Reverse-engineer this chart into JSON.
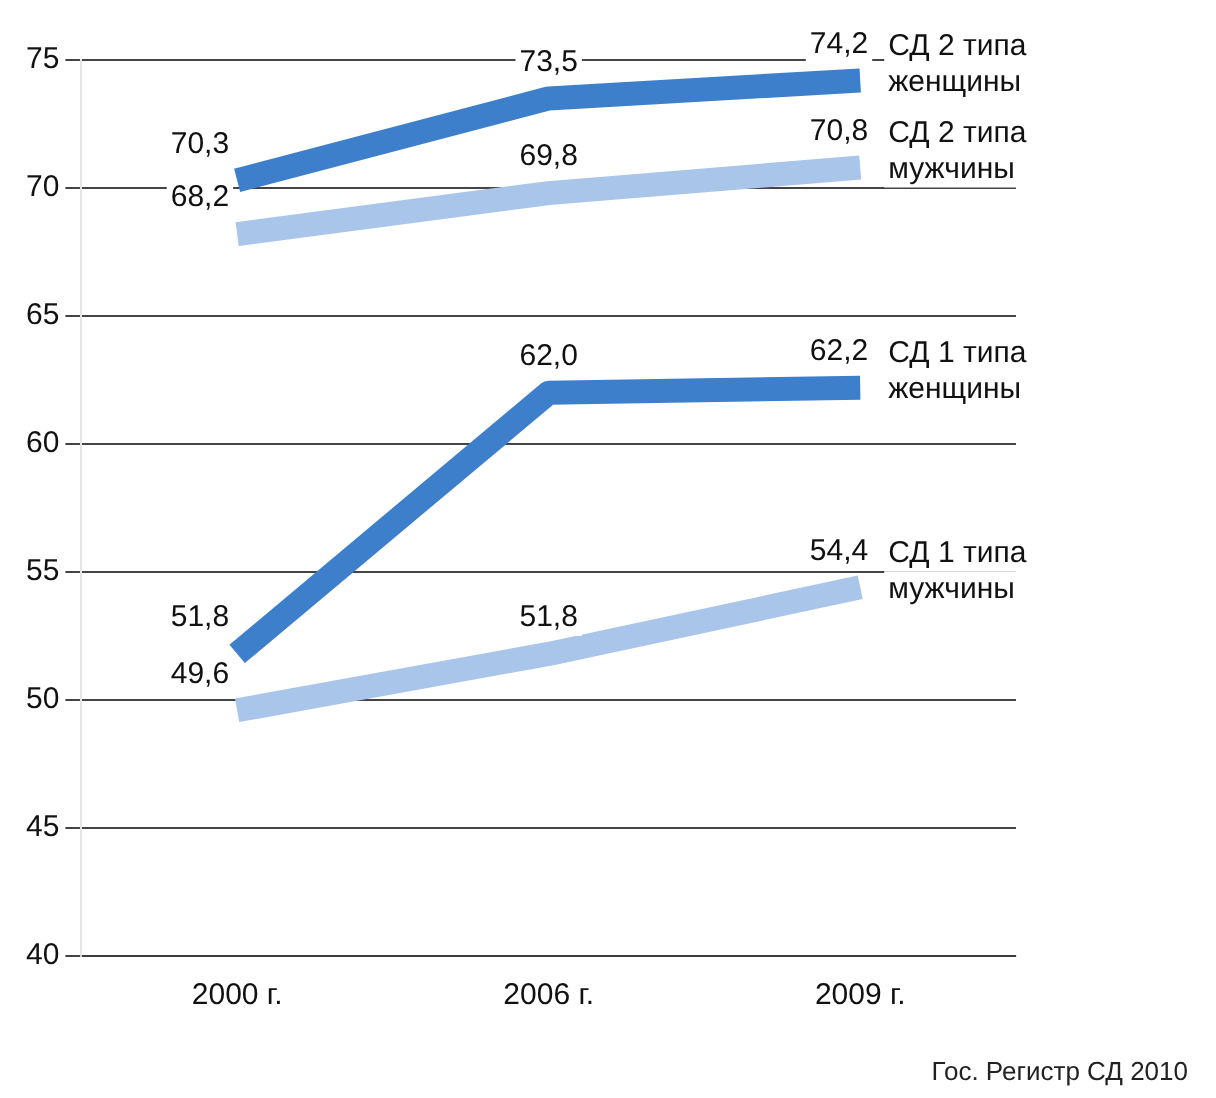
{
  "chart_data": {
    "type": "line",
    "categories": [
      "2000 г.",
      "2006 г.",
      "2009 г."
    ],
    "series": [
      {
        "name": "СД 2 типа женщины",
        "color": "#3d7fcb",
        "values": [
          70.3,
          73.5,
          74.2
        ],
        "value_labels": [
          "70,3",
          "73,5",
          "74,2"
        ]
      },
      {
        "name": "СД 2 типа мужчины",
        "color": "#a9c5ea",
        "values": [
          68.2,
          69.8,
          70.8
        ],
        "value_labels": [
          "68,2",
          "69,8",
          "70,8"
        ]
      },
      {
        "name": "СД 1 типа женщины",
        "color": "#3d7fcb",
        "values": [
          51.8,
          62.0,
          62.2
        ],
        "value_labels": [
          "51,8",
          "62,0",
          "62,2"
        ]
      },
      {
        "name": "СД 1 типа мужчины",
        "color": "#a9c5ea",
        "values": [
          49.6,
          51.8,
          54.4
        ],
        "value_labels": [
          "49,6",
          "51,8",
          "54,4"
        ]
      }
    ],
    "ylim": [
      40,
      75
    ],
    "yticks": [
      40,
      45,
      50,
      55,
      60,
      65,
      70,
      75
    ],
    "grid": "y",
    "legend": false,
    "marker": "none",
    "line_style": "solid",
    "annotations": [
      "Гос. Регистр СД 2010"
    ]
  }
}
